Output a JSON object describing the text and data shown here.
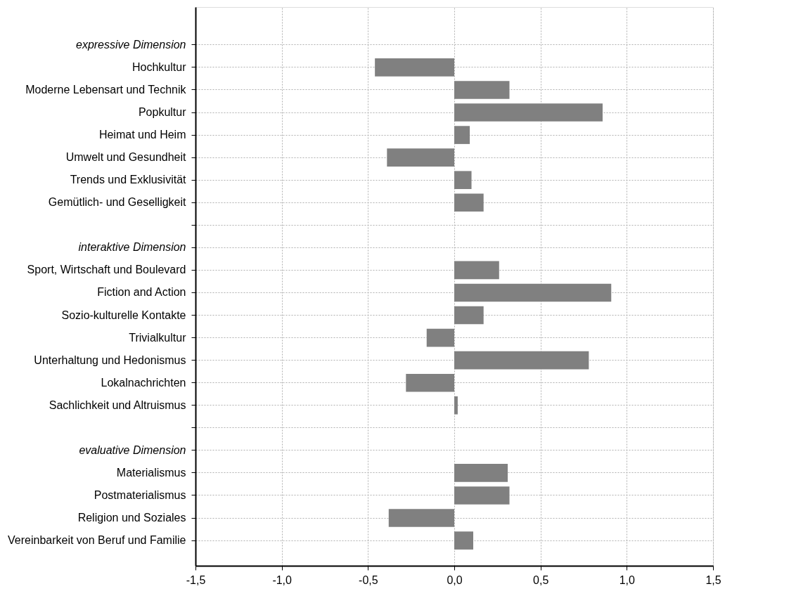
{
  "chart_data": {
    "type": "bar",
    "orientation": "horizontal",
    "categories": [
      "expressive Dimension",
      "Hochkultur",
      "Moderne Lebensart und Technik",
      "Popkultur",
      "Heimat und Heim",
      "Umwelt und Gesundheit",
      "Trends und Exklusivität",
      "Gemütlich- und Geselligkeit",
      null,
      "interaktive Dimension",
      "Sport, Wirtschaft und Boulevard",
      "Fiction and Action",
      "Sozio-kulturelle Kontakte",
      "Trivialkultur",
      "Unterhaltung und Hedonismus",
      "Lokalnachrichten",
      "Sachlichkeit und Altruismus",
      null,
      "evaluative Dimension",
      "Materialismus",
      "Postmaterialismus",
      "Religion und Soziales",
      "Vereinbarkeit von Beruf und Familie"
    ],
    "values": [
      null,
      -0.46,
      0.32,
      0.86,
      0.09,
      -0.39,
      0.1,
      0.17,
      null,
      null,
      0.26,
      0.91,
      0.17,
      -0.16,
      0.78,
      -0.28,
      0.02,
      null,
      null,
      0.31,
      0.32,
      -0.38,
      0.11
    ],
    "color": "#808080",
    "xlim": [
      -1.5,
      1.5
    ],
    "xticks": [
      {
        "value": -1.5,
        "label": "-1,5"
      },
      {
        "value": -1.0,
        "label": "-1,0"
      },
      {
        "value": -0.5,
        "label": "-0,5"
      },
      {
        "value": 0,
        "label": "0,0"
      },
      {
        "value": 0.5,
        "label": "0,5"
      },
      {
        "value": 1.0,
        "label": "1,0"
      },
      {
        "value": 1.5,
        "label": "1,5"
      }
    ],
    "grid": true
  }
}
